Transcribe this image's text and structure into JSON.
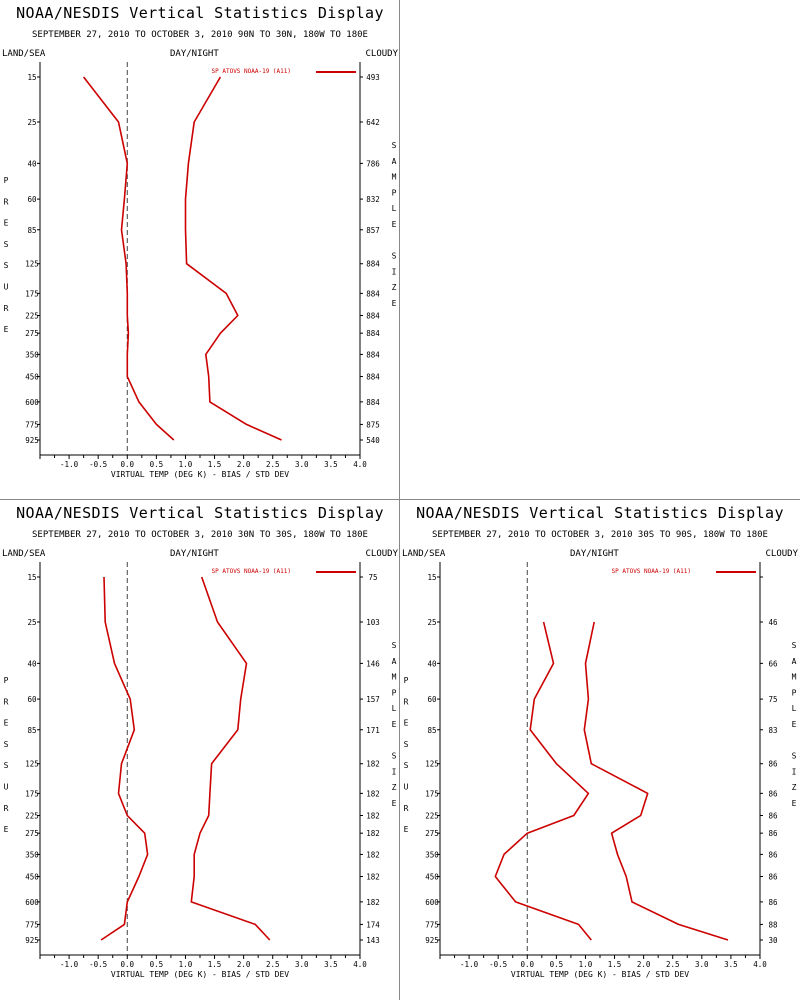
{
  "header": {
    "title": "NOAA/NESDIS Vertical Statistics Display",
    "land_sea": "LAND/SEA",
    "day_night": "DAY/NIGHT",
    "cloudy": "CLOUDY"
  },
  "colors": {
    "series": "#cc0000",
    "zero_line": "#444444",
    "axis": "#000000"
  },
  "chart_data": [
    {
      "type": "line",
      "subtitle": "SEPTEMBER 27, 2010 TO OCTOBER 3, 2010 90N TO 30N, 180W TO 180E",
      "legend": "SP ATOVS NOAA-19 (A11)",
      "legend_position": "top-right",
      "xlabel": "VIRTUAL TEMP (DEG K) - BIAS / STD DEV",
      "ylabel": "PRESSURE",
      "right_label": "SAMPLE SIZE",
      "xlim": [
        -1.5,
        4.0
      ],
      "x_ticks": [
        "-1.0",
        "-0.5",
        "0.0",
        "0.5",
        "1.0",
        "1.5",
        "2.0",
        "2.5",
        "3.0",
        "3.5",
        "4.0"
      ],
      "pressure_levels": [
        15,
        25,
        40,
        60,
        85,
        125,
        175,
        225,
        275,
        350,
        450,
        600,
        775,
        925
      ],
      "sample_size": [
        "493",
        "642",
        "786",
        "832",
        "857",
        "884",
        "884",
        "884",
        "884",
        "884",
        "884",
        "884",
        "875",
        "540"
      ],
      "series": [
        {
          "name": "bias",
          "values": [
            -0.75,
            -0.15,
            0.0,
            -0.05,
            -0.1,
            -0.02,
            0.0,
            0.0,
            0.02,
            0.0,
            0.0,
            0.2,
            0.5,
            0.8
          ]
        },
        {
          "name": "std dev",
          "values": [
            1.6,
            1.15,
            1.05,
            1.0,
            1.0,
            1.02,
            1.7,
            1.9,
            1.6,
            1.35,
            1.4,
            1.42,
            2.05,
            2.65
          ]
        }
      ]
    },
    {
      "type": "line",
      "subtitle": "SEPTEMBER 27, 2010 TO OCTOBER 3, 2010 30N TO 30S, 180W TO 180E",
      "legend": "SP ATOVS NOAA-19 (A11)",
      "legend_position": "top-right",
      "xlabel": "VIRTUAL TEMP (DEG K) - BIAS / STD DEV",
      "ylabel": "PRESSURE",
      "right_label": "SAMPLE SIZE",
      "xlim": [
        -1.5,
        4.0
      ],
      "x_ticks": [
        "-1.0",
        "-0.5",
        "0.0",
        "0.5",
        "1.0",
        "1.5",
        "2.0",
        "2.5",
        "3.0",
        "3.5",
        "4.0"
      ],
      "pressure_levels": [
        15,
        25,
        40,
        60,
        85,
        125,
        175,
        225,
        275,
        350,
        450,
        600,
        775,
        925
      ],
      "sample_size": [
        "75",
        "103",
        "146",
        "157",
        "171",
        "182",
        "182",
        "182",
        "182",
        "182",
        "182",
        "182",
        "174",
        "143"
      ],
      "series": [
        {
          "name": "bias",
          "values": [
            -0.4,
            -0.38,
            -0.22,
            0.05,
            0.12,
            -0.1,
            -0.15,
            0.0,
            0.3,
            0.35,
            0.2,
            0.0,
            -0.05,
            -0.45
          ]
        },
        {
          "name": "std dev",
          "values": [
            1.28,
            1.55,
            2.05,
            1.95,
            1.9,
            1.45,
            1.42,
            1.4,
            1.25,
            1.15,
            1.15,
            1.1,
            2.2,
            2.45
          ]
        }
      ]
    },
    {
      "type": "line",
      "subtitle": "SEPTEMBER 27, 2010 TO OCTOBER 3, 2010 30S TO 90S, 180W TO 180E",
      "legend": "SP ATOVS NOAA-19 (A11)",
      "legend_position": "top-right",
      "xlabel": "VIRTUAL TEMP (DEG K) - BIAS / STD DEV",
      "ylabel": "PRESSURE",
      "right_label": "SAMPLE SIZE",
      "xlim": [
        -1.5,
        4.0
      ],
      "x_ticks": [
        "-1.0",
        "-0.5",
        "0.0",
        "0.5",
        "1.0",
        "1.5",
        "2.0",
        "2.5",
        "3.0",
        "3.5",
        "4.0"
      ],
      "pressure_levels": [
        15,
        25,
        40,
        60,
        85,
        125,
        175,
        225,
        275,
        350,
        450,
        600,
        775,
        925
      ],
      "sample_size": [
        "",
        "46",
        "66",
        "75",
        "83",
        "86",
        "86",
        "86",
        "86",
        "86",
        "86",
        "86",
        "88",
        "30"
      ],
      "series": [
        {
          "name": "bias",
          "values": [
            null,
            0.28,
            0.45,
            0.12,
            0.05,
            0.5,
            1.05,
            0.8,
            0.0,
            -0.4,
            -0.55,
            -0.2,
            0.88,
            1.1
          ]
        },
        {
          "name": "std dev",
          "values": [
            null,
            1.15,
            1.0,
            1.05,
            0.98,
            1.1,
            2.07,
            1.95,
            1.45,
            1.55,
            1.7,
            1.8,
            2.6,
            3.45
          ]
        }
      ]
    }
  ]
}
